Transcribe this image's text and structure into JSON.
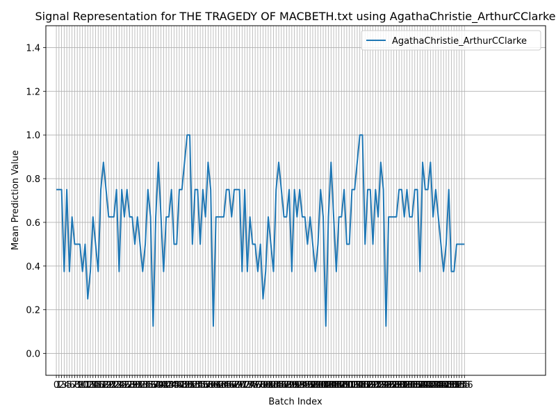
{
  "chart_data": {
    "type": "line",
    "title": "Signal Representation for THE TRAGEDY OF MACBETH.txt using AgathaChristie_ArthurCClarke",
    "xlabel": "Batch Index",
    "ylabel": "Mean Prediction Value",
    "xlim": [
      -4,
      187
    ],
    "ylim": [
      -0.1,
      1.5
    ],
    "yticks": [
      0.0,
      0.2,
      0.4,
      0.6,
      0.8,
      1.0,
      1.2,
      1.4
    ],
    "grid": true,
    "legend_position": "top-right",
    "color": "#1f77b4",
    "series": [
      {
        "name": "AgathaChristie_ArthurCClarke",
        "values": [
          0.75,
          0.75,
          0.75,
          0.375,
          0.75,
          0.375,
          0.625,
          0.5,
          0.5,
          0.5,
          0.375,
          0.5,
          0.25,
          0.375,
          0.625,
          0.5,
          0.375,
          0.75,
          0.875,
          0.75,
          0.625,
          0.625,
          0.625,
          0.75,
          0.375,
          0.75,
          0.625,
          0.75,
          0.625,
          0.625,
          0.5,
          0.625,
          0.5,
          0.375,
          0.5,
          0.75,
          0.625,
          0.125,
          0.625,
          0.875,
          0.625,
          0.375,
          0.625,
          0.625,
          0.75,
          0.5,
          0.5,
          0.75,
          0.75,
          0.875,
          1.0,
          1.0,
          0.5,
          0.75,
          0.75,
          0.5,
          0.75,
          0.625,
          0.875,
          0.75,
          0.125,
          0.625,
          0.625,
          0.625,
          0.625,
          0.75,
          0.75,
          0.625,
          0.75,
          0.75,
          0.75,
          0.375,
          0.75,
          0.375,
          0.625,
          0.5,
          0.5,
          0.375,
          0.5,
          0.25,
          0.375,
          0.625,
          0.5,
          0.375,
          0.75,
          0.875,
          0.75,
          0.625,
          0.625,
          0.75,
          0.375,
          0.75,
          0.625,
          0.75,
          0.625,
          0.625,
          0.5,
          0.625,
          0.5,
          0.375,
          0.5,
          0.75,
          0.625,
          0.125,
          0.625,
          0.875,
          0.625,
          0.375,
          0.625,
          0.625,
          0.75,
          0.5,
          0.5,
          0.75,
          0.75,
          0.875,
          1.0,
          1.0,
          0.5,
          0.75,
          0.75,
          0.5,
          0.75,
          0.625,
          0.875,
          0.75,
          0.125,
          0.625,
          0.625,
          0.625,
          0.625,
          0.75,
          0.75,
          0.625,
          0.75,
          0.625,
          0.625,
          0.75,
          0.75,
          0.375,
          0.875,
          0.75,
          0.75,
          0.875,
          0.625,
          0.75,
          0.625,
          0.5,
          0.375,
          0.5,
          0.75,
          0.375,
          0.375,
          0.5,
          0.5,
          0.5,
          0.5
        ]
      }
    ]
  }
}
